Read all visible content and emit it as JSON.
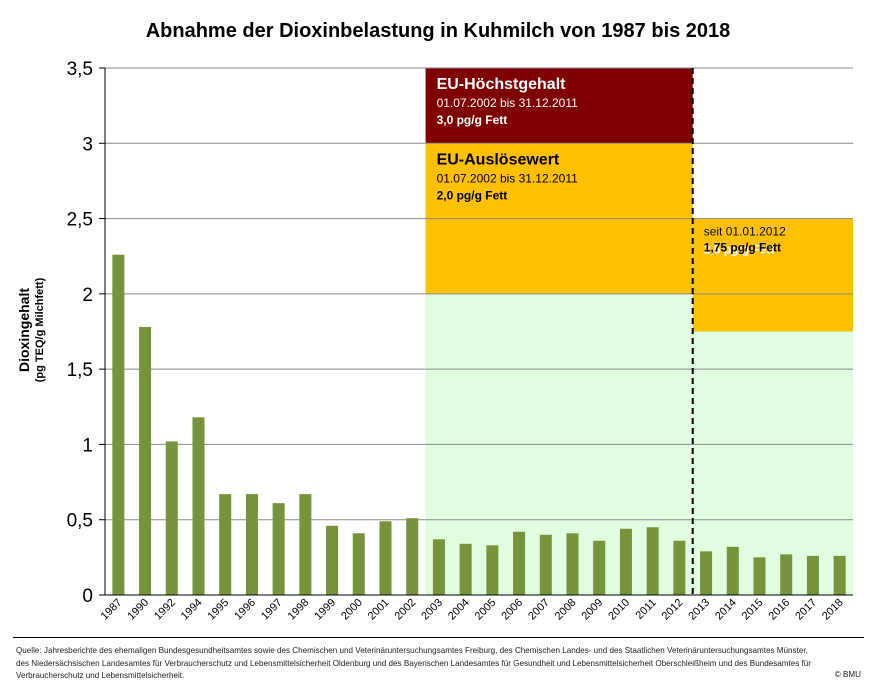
{
  "chart_data": {
    "type": "bar",
    "title": "Abnahme der Dioxinbelastung in Kuhmilch von 1987 bis 2018",
    "ylabel": "Dioxingehalt",
    "ylabel_sub": "(pg TEQ/g Milchfett)",
    "xlabel": "",
    "ylim": [
      0,
      3.5
    ],
    "yticks": [
      "0",
      "0,5",
      "1",
      "1,5",
      "2",
      "2,5",
      "3",
      "3,5"
    ],
    "ytick_values": [
      0,
      0.5,
      1,
      1.5,
      2,
      2.5,
      3,
      3.5
    ],
    "grid": true,
    "categories": [
      "1987",
      "1990",
      "1992",
      "1994",
      "1995",
      "1996",
      "1997",
      "1998",
      "1999",
      "2000",
      "2001",
      "2002",
      "2003",
      "2004",
      "2005",
      "2006",
      "2007",
      "2008",
      "2009",
      "2010",
      "2011",
      "2012",
      "2013",
      "2014",
      "2015",
      "2016",
      "2017",
      "2018"
    ],
    "values": [
      2.26,
      1.78,
      1.02,
      1.18,
      0.67,
      0.67,
      0.61,
      0.67,
      0.46,
      0.41,
      0.49,
      0.51,
      0.37,
      0.34,
      0.33,
      0.42,
      0.4,
      0.41,
      0.36,
      0.44,
      0.45,
      0.36,
      0.29,
      0.32,
      0.25,
      0.27,
      0.26,
      0.26
    ],
    "bar_color": "#77933c",
    "regulatory_periods": [
      {
        "from_category": "2003",
        "to_category": "2012",
        "hoechstgehalt": {
          "label": "EU-Höchstgehalt",
          "period": "01.07.2002 bis 31.12.2011",
          "value_text": "3,0 pg/g Fett",
          "value": 3.0
        },
        "ausloesewert": {
          "label": "EU-Auslösewert",
          "period": "01.07.2002 bis 31.12.2011",
          "value_text": "2,0 pg/g Fett",
          "value": 2.0
        }
      },
      {
        "from_category": "2012",
        "to_category": "2018",
        "hoechstgehalt": {
          "label": "",
          "period": "seit 01.01.2012",
          "value_text": "2,5 pg/g Fett",
          "value": 2.5
        },
        "ausloesewert": {
          "label": "",
          "period": "seit 01.01.2012",
          "value_text": "1,75 pg/g Fett",
          "value": 1.75
        }
      }
    ],
    "colors": {
      "hoechstgehalt": "#7f0000",
      "ausloesewert": "#ffc000",
      "below_limit": "#e0fde0",
      "grid": "#888888",
      "divider": "#000000"
    }
  },
  "footer": {
    "source": "Quelle: Jahresberichte des ehemaligen Bundesgesundheitsamtes sowie des Chemischen und Veterinäruntersuchungsamtes Freiburg, des Chemischen Landes- und des Staatlichen Veterinäruntersuchungsamtes Münster, des Niedersächsischen Landesamtes für Verbraucherschutz und Lebensmittelsicherheit Oldenburg und des Bayerischen Landesamtes für Gesundheit und Lebensmittelsicherheit Oberschleißheim und des Bundesamtes für Verbraucherschutz und Lebensmittelsicherheit.",
    "copyright": "© BMU"
  }
}
